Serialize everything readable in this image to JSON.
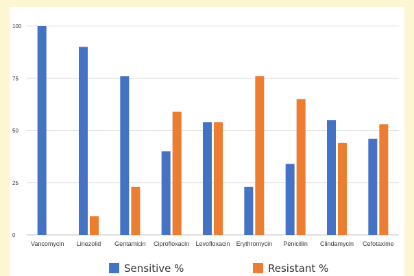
{
  "chart_data": {
    "type": "bar",
    "categories": [
      "Vancomycin",
      "Linezolid",
      "Gentamicin",
      "Ciprofloxacin",
      "Levofloxacin",
      "Erythromycin",
      "Penicillin",
      "Clindamycin",
      "Cefotaxime"
    ],
    "series": [
      {
        "name": "Sensitive %",
        "color": "#4472c4",
        "values": [
          100,
          90,
          76,
          40,
          54,
          23,
          34,
          55,
          46
        ]
      },
      {
        "name": "Resistant %",
        "color": "#ed7d31",
        "values": [
          0,
          9,
          23,
          59,
          54,
          76,
          65,
          44,
          53
        ]
      }
    ],
    "y_ticks": [
      "0",
      "25",
      "50",
      "75",
      "100"
    ],
    "ylim": [
      0,
      100
    ],
    "grid": true,
    "legend_position": "bottom"
  }
}
